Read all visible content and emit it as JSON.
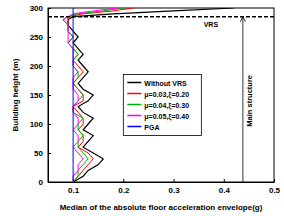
{
  "chart_data": {
    "type": "line",
    "orientation": "horizontal",
    "x_label": "Median of the absolute floor acceleration envelope(g)",
    "y_label": "Building height (m)",
    "xlim": [
      0.05,
      0.5
    ],
    "xticks": [
      0.1,
      0.2,
      0.3,
      0.4,
      0.5
    ],
    "ylim": [
      0,
      300
    ],
    "yticks": [
      0,
      50,
      100,
      150,
      200,
      250,
      300
    ],
    "legend": "center",
    "grid": false,
    "heights": [
      0,
      10,
      20,
      30,
      40,
      50,
      60,
      70,
      80,
      90,
      100,
      110,
      120,
      130,
      140,
      150,
      160,
      170,
      180,
      190,
      200,
      210,
      220,
      230,
      240,
      250,
      260,
      270,
      280,
      285,
      290,
      295,
      300
    ],
    "series": [
      {
        "name": "Without VRS",
        "color": "#000000",
        "values": [
          0.1,
          0.12,
          0.13,
          0.15,
          0.16,
          0.14,
          0.12,
          0.13,
          0.14,
          0.12,
          0.13,
          0.14,
          0.12,
          0.11,
          0.13,
          0.14,
          0.12,
          0.11,
          0.12,
          0.13,
          0.12,
          0.11,
          0.12,
          0.11,
          0.1,
          0.11,
          0.1,
          0.09,
          0.09,
          0.1,
          0.18,
          0.3,
          0.42
        ]
      },
      {
        "name": "μ=0.03,ξ=0.20",
        "color": "#ff0000",
        "values": [
          0.1,
          0.11,
          0.12,
          0.13,
          0.14,
          0.13,
          0.11,
          0.12,
          0.12,
          0.11,
          0.12,
          0.12,
          0.11,
          0.1,
          0.12,
          0.12,
          0.11,
          0.1,
          0.11,
          0.12,
          0.11,
          0.1,
          0.11,
          0.1,
          0.09,
          0.1,
          0.09,
          0.09,
          0.09,
          0.09,
          0.12,
          0.18,
          0.22
        ]
      },
      {
        "name": "μ=0.04,ξ=0.30",
        "color": "#00b000",
        "values": [
          0.1,
          0.11,
          0.11,
          0.12,
          0.13,
          0.12,
          0.11,
          0.11,
          0.12,
          0.11,
          0.11,
          0.12,
          0.1,
          0.1,
          0.11,
          0.12,
          0.11,
          0.1,
          0.11,
          0.11,
          0.1,
          0.1,
          0.11,
          0.1,
          0.09,
          0.1,
          0.09,
          0.09,
          0.08,
          0.09,
          0.11,
          0.16,
          0.2
        ]
      },
      {
        "name": "μ=0.05,ξ=0.40",
        "color": "#ff00ff",
        "values": [
          0.1,
          0.1,
          0.11,
          0.11,
          0.12,
          0.11,
          0.1,
          0.11,
          0.11,
          0.1,
          0.11,
          0.11,
          0.1,
          0.1,
          0.11,
          0.11,
          0.1,
          0.1,
          0.1,
          0.11,
          0.1,
          0.1,
          0.1,
          0.1,
          0.09,
          0.09,
          0.09,
          0.09,
          0.08,
          0.09,
          0.1,
          0.14,
          0.19
        ]
      },
      {
        "name": "PGA",
        "color": "#0000ff",
        "values": [
          0.1,
          0.1,
          0.1,
          0.1,
          0.1,
          0.1,
          0.1,
          0.1,
          0.1,
          0.1,
          0.1,
          0.1,
          0.1,
          0.1,
          0.1,
          0.1,
          0.1,
          0.1,
          0.1,
          0.1,
          0.1,
          0.1,
          0.1,
          0.1,
          0.1,
          0.1,
          0.1,
          0.1,
          0.1,
          0.1,
          0.1,
          0.1,
          0.1
        ]
      }
    ],
    "annotations": [
      {
        "text": "VRS",
        "y": 285
      },
      {
        "text": "Main structure",
        "x": 0.45
      }
    ]
  }
}
